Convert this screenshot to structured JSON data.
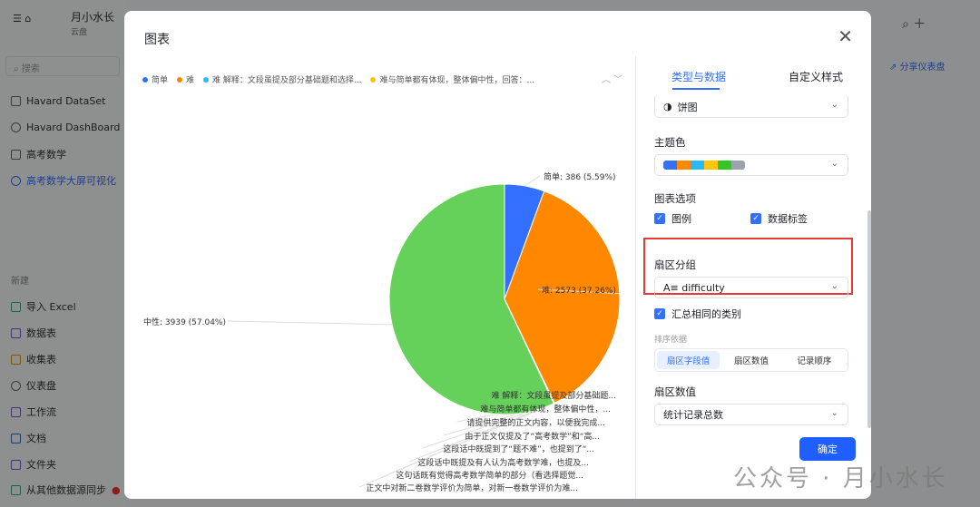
{
  "app": {
    "workspace": "月小水长",
    "breadcrumb": [
      "云盘"
    ],
    "search_placeholder": "搜索",
    "share": "分享仪表盘",
    "nav": [
      "Havard DataSet",
      "Havard DashBoard",
      "高考数学",
      "高考数学大屏可视化"
    ],
    "new_title": "新建",
    "new_items": [
      "导入 Excel",
      "数据表",
      "收集表",
      "仪表盘",
      "工作流",
      "文档",
      "文件夹",
      "从其他数据源同步"
    ]
  },
  "modal": {
    "title": "图表",
    "confirm": "确定"
  },
  "panel": {
    "tabs": [
      "类型与数据",
      "自定义样式"
    ],
    "chart_type": "饼图",
    "theme_label": "主题色",
    "theme_colors": [
      "#3370ff",
      "#ff8800",
      "#2cb7f5",
      "#ffc60a",
      "#34c724",
      "#9ca3af"
    ],
    "options_label": "图表选项",
    "opt_legend": "图例",
    "opt_data_label": "数据标签",
    "group_label": "扇区分组",
    "group_value": "A≡ difficulty",
    "merge": "汇总相同的类别",
    "sort_label": "排序依据",
    "sort_options": [
      "扇区字段值",
      "扇区数值",
      "记录顺序"
    ],
    "sort_active": 0,
    "value_label": "扇区数值",
    "value_value": "统计记录总数"
  },
  "watermark": "公众号 · 月小水长",
  "chart_data": {
    "type": "pie",
    "legend_position": "top",
    "legend": [
      "简单",
      "难",
      "难 解释：文段虽提及部分基础题和选择...",
      "难与简单都有体现，整体偏中性，回答：..."
    ],
    "slices": [
      {
        "name": "简单",
        "value": 386,
        "percent": "5.59%",
        "color": "#3370ff",
        "label": "简单: 386 (5.59%)"
      },
      {
        "name": "难",
        "value": 2573,
        "percent": "37.26%",
        "color": "#ff8800",
        "label": "难: 2573 (37.26%)"
      },
      {
        "name": "难 解释：文段虽提及部分基础题...",
        "value": 1,
        "color": "#2cb7f5",
        "label": "难  解释：文段虽提及部分基础题..."
      },
      {
        "name": "难与简单都有体现，整体偏中性，...",
        "value": 1,
        "color": "#ffc60a",
        "label": "难与简单都有体现，整体偏中性，..."
      },
      {
        "name": "请提供完整的正文内容，以便我完成...",
        "value": 1,
        "color": "#34c724",
        "label": "请提供完整的正文内容，以便我完成..."
      },
      {
        "name": "由于正文仅提及了“高考数学”和“高...",
        "value": 1,
        "color": "#9ca3af",
        "label": "由于正文仅提及了“高考数学”和“高..."
      },
      {
        "name": "这段话中既提到了“题不难”，也提到了“...",
        "value": 1,
        "color": "#3370ff",
        "label": "这段话中既提到了“题不难”，也提到了“..."
      },
      {
        "name": "这段话中既提及有人认为高考数学难，也提及...",
        "value": 1,
        "color": "#ff8800",
        "label": "这段话中既提及有人认为高考数学难，也提及..."
      },
      {
        "name": "这句话既有觉得高考数学简单的部分（看选择题觉...",
        "value": 1,
        "color": "#2cb7f5",
        "label": "这句话既有觉得高考数学简单的部分（看选择题觉..."
      },
      {
        "name": "正文中对新二卷数学评价为简单，对新一卷数学评价为难...",
        "value": 1,
        "color": "#ffc60a",
        "label": "正文中对新二卷数学评价为简单，对新一卷数学评价为难..."
      },
      {
        "name": "中性",
        "value": 3939,
        "percent": "57.04%",
        "color": "#65d15a",
        "label": "中性: 3939 (57.04%)"
      }
    ]
  }
}
